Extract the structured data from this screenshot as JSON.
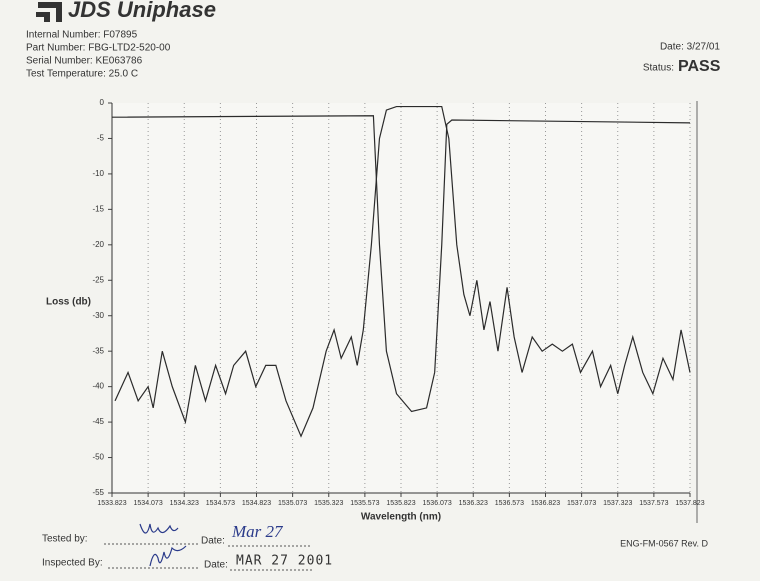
{
  "header": {
    "logo": "JDS Uniphase",
    "lines": [
      "Internal Number: F07895",
      "Part Number: FBG-LTD2-520-00",
      "Serial Number: KE063786",
      "Test Temperature: 25.0 C"
    ],
    "date": "Date: 3/27/01",
    "status_label": "Status:",
    "status": "PASS"
  },
  "chart_data": {
    "type": "line",
    "ylabel": "Loss (db)",
    "xlabel": "Wavelength (nm)",
    "xlim": [
      1533.823,
      1537.823
    ],
    "ylim": [
      -55,
      0
    ],
    "xticks": [
      1533.823,
      1534.073,
      1534.323,
      1534.573,
      1534.823,
      1535.073,
      1535.323,
      1535.573,
      1535.823,
      1536.073,
      1536.323,
      1536.573,
      1536.823,
      1537.073,
      1537.323,
      1537.573,
      1537.823
    ],
    "yticks": [
      0,
      -5,
      -10,
      -15,
      -20,
      -25,
      -30,
      -35,
      -40,
      -45,
      -50,
      -55
    ],
    "xgrid": true,
    "series": [
      {
        "color": "#2b2b2b",
        "x": [
          1533.823,
          1535.632,
          1535.674,
          1535.722,
          1535.792,
          1535.896,
          1536.0,
          1536.056,
          1536.105,
          1536.14,
          1536.175,
          1537.823
        ],
        "values": [
          -2.0,
          -1.8,
          -20,
          -35,
          -41,
          -43.5,
          -43,
          -38,
          -20,
          -3,
          -2.4,
          -2.8
        ]
      },
      {
        "color": "#2b2b2b",
        "x": [
          1533.844,
          1533.934,
          1534.004,
          1534.073,
          1534.108,
          1534.171,
          1534.24,
          1534.331,
          1534.4,
          1534.47,
          1534.54,
          1534.609,
          1534.665,
          1534.748,
          1534.818,
          1534.887,
          1534.957,
          1535.027,
          1535.131,
          1535.214,
          1535.305,
          1535.36,
          1535.409,
          1535.479,
          1535.52,
          1535.562,
          1535.618,
          1535.674,
          1535.722,
          1535.792,
          1535.966,
          1536.105,
          1536.154,
          1536.209,
          1536.258,
          1536.3,
          1536.348,
          1536.397,
          1536.439,
          1536.494,
          1536.557,
          1536.606,
          1536.661,
          1536.731,
          1536.8,
          1536.87,
          1536.94,
          1537.009,
          1537.065,
          1537.148,
          1537.204,
          1537.274,
          1537.323,
          1537.371,
          1537.427,
          1537.496,
          1537.566,
          1537.636,
          1537.705,
          1537.761,
          1537.823
        ],
        "values": [
          -42,
          -38,
          -42,
          -40,
          -43,
          -35,
          -40,
          -45,
          -37,
          -42,
          -37,
          -41,
          -37,
          -35,
          -40,
          -37,
          -37,
          -42,
          -47,
          -43,
          -35,
          -32,
          -36,
          -33,
          -37,
          -32,
          -20,
          -5,
          -1,
          -0.5,
          -0.5,
          -0.5,
          -5,
          -20,
          -27,
          -30,
          -25,
          -32,
          -28,
          -35,
          -26,
          -33,
          -38,
          -33,
          -35,
          -34,
          -35,
          -34,
          -38,
          -35,
          -40,
          -37,
          -41,
          -37,
          -33,
          -38,
          -41,
          -36,
          -39,
          -32,
          -38
        ]
      }
    ]
  },
  "footer": {
    "tested_by": "Tested by:",
    "inspected_by": "Inspected By:",
    "date_label": "Date:",
    "tested_date": "Mar 27",
    "inspected_date": "MAR 27 2001",
    "form_number": "ENG-FM-0567 Rev. D"
  }
}
